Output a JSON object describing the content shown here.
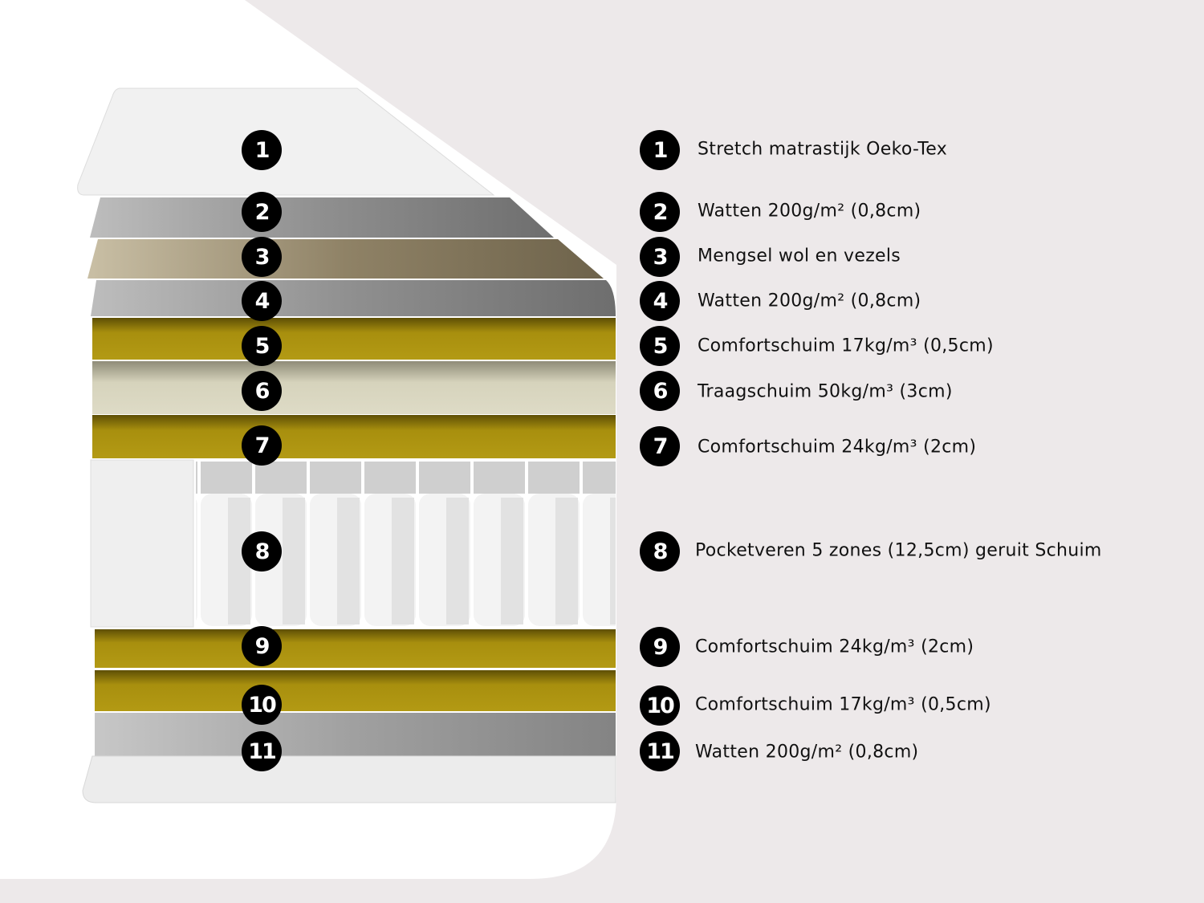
{
  "layers": [
    {
      "number": "1",
      "label": "Stretch matrastijk Oeko-Tex"
    },
    {
      "number": "2",
      "label": "Watten 200g/m² (0,8cm)"
    },
    {
      "number": "3",
      "label": "Mengsel wol en vezels"
    },
    {
      "number": "4",
      "label": "Watten 200g/m² (0,8cm)"
    },
    {
      "number": "5",
      "label": "Comfortschuim 17kg/m³ (0,5cm)"
    },
    {
      "number": "6",
      "label": "Traagschuim 50kg/m³ (3cm)"
    },
    {
      "number": "7",
      "label": "Comfortschuim 24kg/m³ (2cm)"
    },
    {
      "number": "8",
      "label": "Pocketveren 5 zones (12,5cm) geruit Schuim"
    },
    {
      "number": "9",
      "label": "Comfortschuim 24kg/m³ (2cm)"
    },
    {
      "number": "10",
      "label": "Comfortschuim 17kg/m³ (0,5cm)"
    },
    {
      "number": "11",
      "label": "Watten 200g/m² (0,8cm)"
    }
  ],
  "colors": {
    "background": "#ede9ea",
    "cover": "#f2f2f2",
    "wadding": "#9c9c9c",
    "wool_blend": "#a89c80",
    "comfort_foam": "#a88f0e",
    "memory_foam": "#d6d3bc",
    "badge": "#000000"
  }
}
